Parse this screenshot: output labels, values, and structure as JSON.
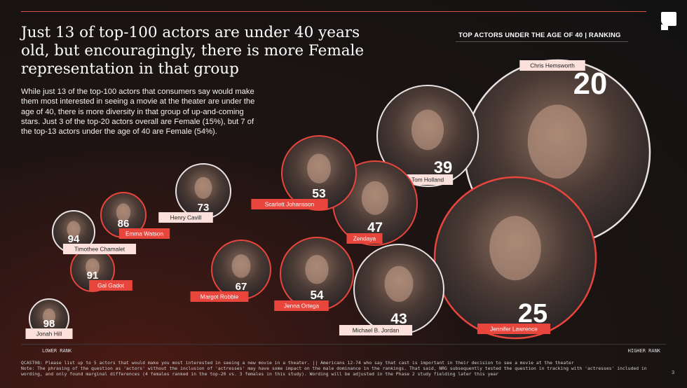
{
  "title": "Just 13 of top-100 actors are under 40 years old, but encouragingly, there is more Female representation in that group",
  "body": "While just 13 of the top-100 actors that consumers say would make them most interested in seeing a movie at the theater are under the age of 40, there is more diversity in that group of up-and-coming stars. Just 3 of the top-20 actors overall are Female (15%), but 7 of the top-13 actors under the age of 40 are Female (54%).",
  "axis": {
    "lower": "LOWER RANK",
    "higher": "HIGHER RANK"
  },
  "footnote": "QCAST08: Please list up to 5 actors that would make you most interested in seeing a new movie in a theater. || Americans 12-74 who say that cast is important in their decision to see a movie at the theater\nNote: The phrasing of the question as 'actors' without the inclusion of 'actresses' may have some impact on the male dominance in the rankings. That said, NRG subsequently tested the question in tracking with 'actresses' included in wording, and only found marginal differences (4 females ranked in the top-20 vs. 3 females in this study). Wording will be adjusted in the Phase 2 study fielding later this year",
  "page_number": "3",
  "colors": {
    "female": "#e8453c",
    "male": "#fbe0db",
    "accent": "#d9534a"
  },
  "chart_data": {
    "type": "bubble",
    "title": "TOP ACTORS UNDER THE AGE OF 40 | RANKING",
    "xlabel_left": "LOWER RANK",
    "xlabel_right": "HIGHER RANK",
    "points": [
      {
        "name": "Chris Hemsworth",
        "rank": 20,
        "gender": "male"
      },
      {
        "name": "Jennifer Lawrence",
        "rank": 25,
        "gender": "female"
      },
      {
        "name": "Tom Holland",
        "rank": 39,
        "gender": "male"
      },
      {
        "name": "Michael B. Jordan",
        "rank": 43,
        "gender": "male"
      },
      {
        "name": "Zendaya",
        "rank": 47,
        "gender": "female"
      },
      {
        "name": "Scarlett Johansson",
        "rank": 53,
        "gender": "female"
      },
      {
        "name": "Jenna Ortega",
        "rank": 54,
        "gender": "female"
      },
      {
        "name": "Margot Robbie",
        "rank": 67,
        "gender": "female"
      },
      {
        "name": "Henry Cavill",
        "rank": 73,
        "gender": "male"
      },
      {
        "name": "Emma Watson",
        "rank": 86,
        "gender": "female"
      },
      {
        "name": "Gal Gadot",
        "rank": 91,
        "gender": "female"
      },
      {
        "name": "Timothee Chamalet",
        "rank": 94,
        "gender": "male"
      },
      {
        "name": "Jonah Hill",
        "rank": 98,
        "gender": "male"
      }
    ]
  }
}
